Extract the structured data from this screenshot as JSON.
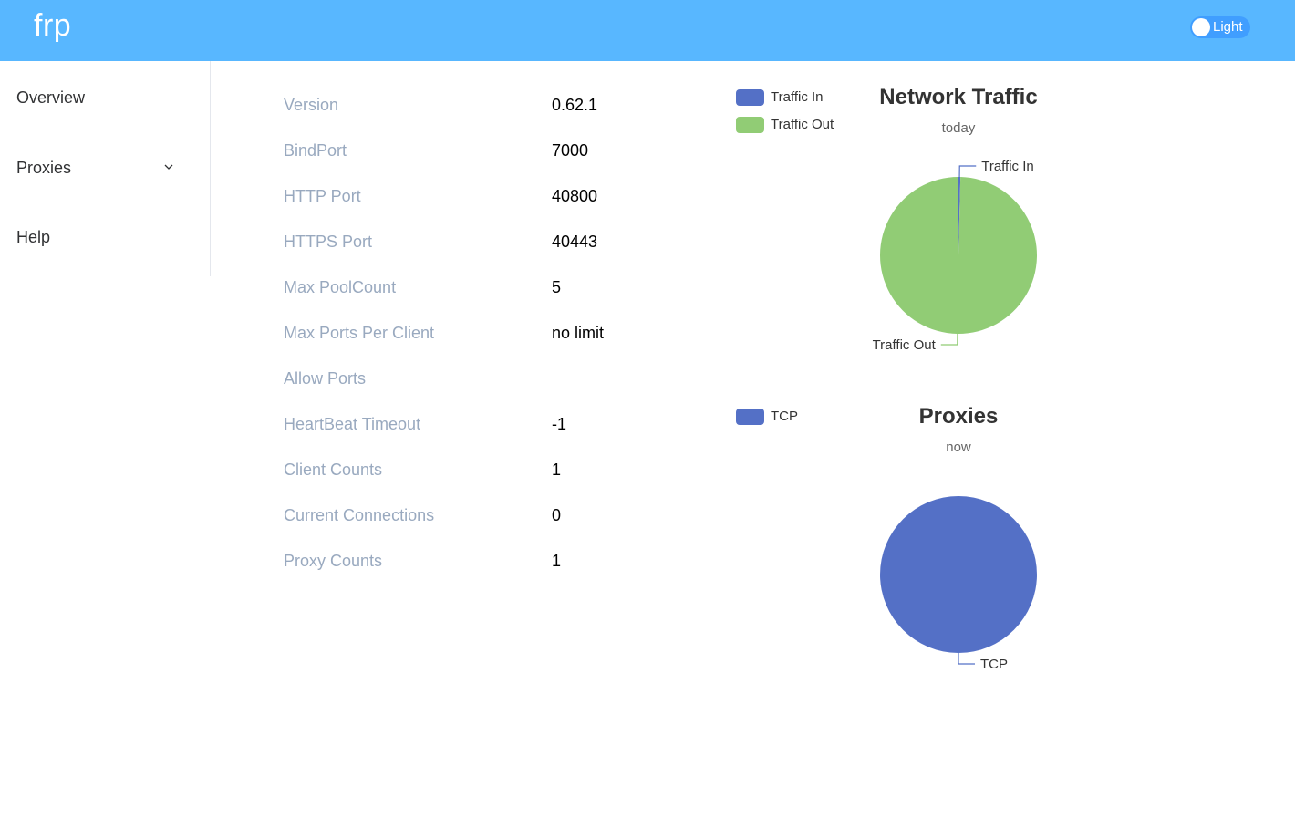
{
  "header": {
    "brand": "frp",
    "theme_toggle_label": "Light"
  },
  "sidebar": {
    "items": [
      {
        "label": "Overview"
      },
      {
        "label": "Proxies"
      },
      {
        "label": "Help"
      }
    ]
  },
  "server_info": [
    {
      "label": "Version",
      "value": "0.62.1"
    },
    {
      "label": "BindPort",
      "value": "7000"
    },
    {
      "label": "HTTP Port",
      "value": "40800"
    },
    {
      "label": "HTTPS Port",
      "value": "40443"
    },
    {
      "label": "Max PoolCount",
      "value": "5"
    },
    {
      "label": "Max Ports Per Client",
      "value": "no limit"
    },
    {
      "label": "Allow Ports",
      "value": ""
    },
    {
      "label": "HeartBeat Timeout",
      "value": "-1"
    },
    {
      "label": "Client Counts",
      "value": "1"
    },
    {
      "label": "Current Connections",
      "value": "0"
    },
    {
      "label": "Proxy Counts",
      "value": "1"
    }
  ],
  "colors": {
    "header": "#58b7ff",
    "traffic_in": "#5470c6",
    "traffic_out": "#91cc75",
    "tcp": "#5470c6"
  },
  "chart_data": [
    {
      "type": "pie",
      "title": "Network Traffic",
      "subtitle": "today",
      "legend": "top-left",
      "slices": [
        {
          "name": "Traffic In",
          "value": 0.4,
          "color": "#5470c6"
        },
        {
          "name": "Traffic Out",
          "value": 99.6,
          "color": "#91cc75"
        }
      ]
    },
    {
      "type": "pie",
      "title": "Proxies",
      "subtitle": "now",
      "legend": "top-left",
      "slices": [
        {
          "name": "TCP",
          "value": 1,
          "color": "#5470c6"
        }
      ]
    }
  ]
}
